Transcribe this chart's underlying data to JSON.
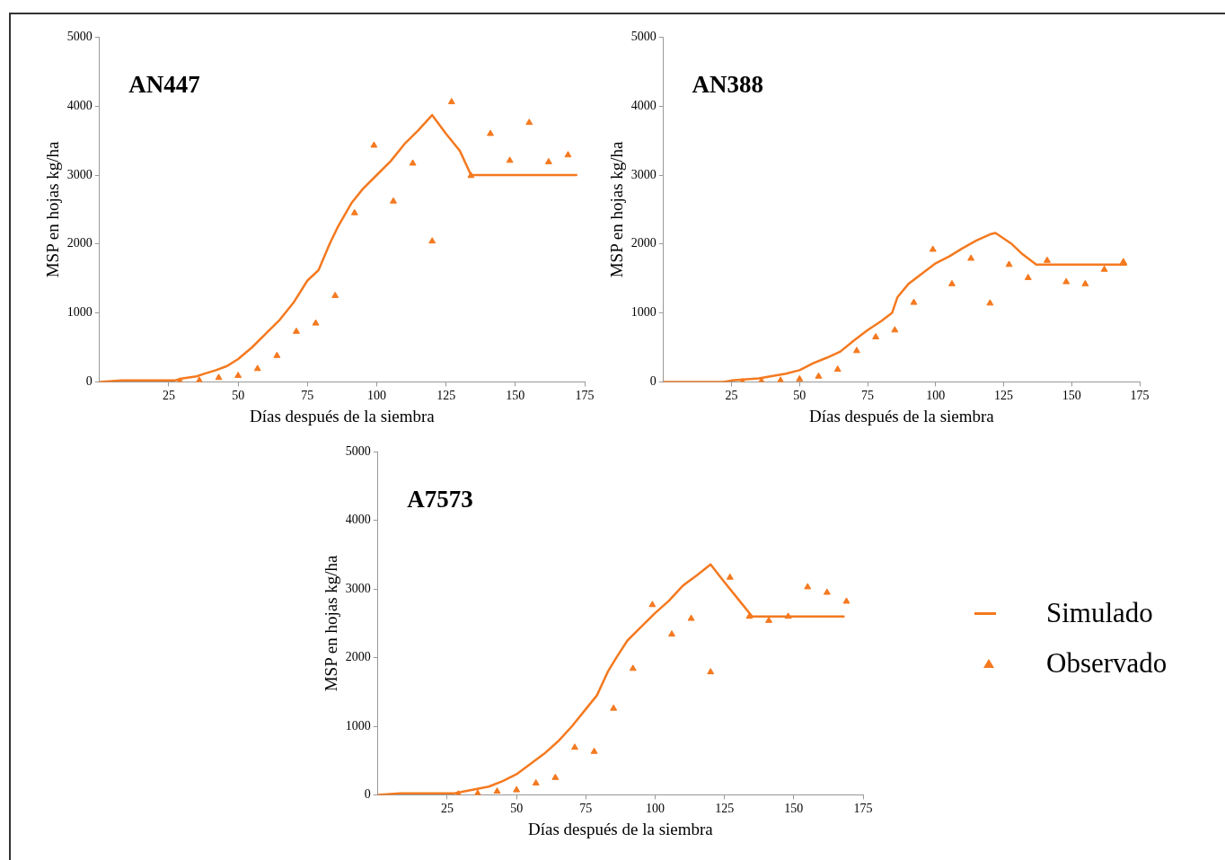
{
  "chart_data": [
    {
      "type": "line",
      "title": "AN447",
      "xlabel": "Días después de la siembra",
      "ylabel": "MSP en hojas kg/ha",
      "xlim": [
        0,
        175
      ],
      "xticks": [
        25,
        50,
        75,
        100,
        125,
        150,
        175
      ],
      "ylim": [
        0,
        5000
      ],
      "yticks": [
        0,
        1000,
        2000,
        3000,
        4000,
        5000
      ],
      "grid": false,
      "legend": false,
      "series": [
        {
          "marker": "none",
          "color": "#f4791f",
          "x": [
            0,
            8,
            27,
            30,
            35,
            38,
            42,
            46,
            50,
            55,
            60,
            65,
            70,
            75,
            79,
            83,
            86,
            91,
            95,
            100,
            105,
            110,
            115,
            120,
            125,
            130,
            134,
            172
          ],
          "values": [
            0,
            20,
            20,
            50,
            80,
            120,
            170,
            230,
            330,
            500,
            700,
            900,
            1150,
            1470,
            1620,
            2000,
            2250,
            2600,
            2800,
            3000,
            3200,
            3450,
            3650,
            3870,
            3600,
            3350,
            3000,
            3000
          ]
        },
        {
          "type": "scatter",
          "marker": "triangle",
          "color": "#f4791f",
          "x": [
            29,
            36,
            43,
            50,
            57,
            64,
            71,
            78,
            85,
            92,
            99,
            106,
            113,
            120,
            127,
            134,
            141,
            148,
            155,
            162,
            169
          ],
          "values": [
            10,
            20,
            60,
            90,
            190,
            380,
            730,
            850,
            1250,
            2450,
            3430,
            2620,
            3170,
            2040,
            4060,
            2990,
            3600,
            3210,
            3760,
            3190,
            3290
          ]
        }
      ]
    },
    {
      "type": "line",
      "title": "AN388",
      "xlabel": "Días después de la siembra",
      "ylabel": "MSP en hojas kg/ha",
      "xlim": [
        0,
        175
      ],
      "xticks": [
        25,
        50,
        75,
        100,
        125,
        150,
        175
      ],
      "ylim": [
        0,
        5000
      ],
      "yticks": [
        0,
        1000,
        2000,
        3000,
        4000,
        5000
      ],
      "grid": false,
      "legend": false,
      "series": [
        {
          "marker": "none",
          "color": "#f4791f",
          "x": [
            0,
            22,
            25,
            35,
            45,
            50,
            55,
            60,
            65,
            70,
            75,
            80,
            84,
            86,
            90,
            95,
            100,
            105,
            110,
            115,
            120,
            122,
            128,
            132,
            137,
            170
          ],
          "values": [
            0,
            0,
            20,
            50,
            120,
            170,
            270,
            350,
            440,
            600,
            750,
            880,
            1000,
            1230,
            1420,
            1570,
            1720,
            1820,
            1940,
            2050,
            2140,
            2160,
            2000,
            1850,
            1700,
            1700
          ]
        },
        {
          "type": "scatter",
          "marker": "triangle",
          "color": "#f4791f",
          "x": [
            29,
            36,
            43,
            50,
            57,
            64,
            71,
            78,
            85,
            92,
            99,
            106,
            113,
            120,
            127,
            134,
            141,
            148,
            155,
            162,
            169
          ],
          "values": [
            0,
            10,
            20,
            40,
            80,
            180,
            450,
            650,
            750,
            1150,
            1920,
            1420,
            1790,
            1140,
            1700,
            1510,
            1760,
            1450,
            1420,
            1630,
            1740
          ]
        }
      ]
    },
    {
      "type": "line",
      "title": "A7573",
      "xlabel": "Días después de la siembra",
      "ylabel": "MSP en hojas kg/ha",
      "xlim": [
        0,
        175
      ],
      "xticks": [
        25,
        50,
        75,
        100,
        125,
        150,
        175
      ],
      "ylim": [
        0,
        5000
      ],
      "yticks": [
        0,
        1000,
        2000,
        3000,
        4000,
        5000
      ],
      "grid": false,
      "legend": "right",
      "series": [
        {
          "name": "Simulado",
          "marker": "none",
          "color": "#f4791f",
          "x": [
            0,
            8,
            27,
            30,
            35,
            40,
            45,
            50,
            55,
            60,
            65,
            70,
            75,
            79,
            83,
            86,
            90,
            95,
            100,
            105,
            110,
            115,
            120,
            125,
            130,
            135,
            168
          ],
          "values": [
            0,
            20,
            20,
            40,
            80,
            120,
            200,
            300,
            450,
            600,
            780,
            1000,
            1250,
            1450,
            1800,
            2000,
            2250,
            2450,
            2650,
            2830,
            3050,
            3200,
            3360,
            3100,
            2850,
            2600,
            2600
          ]
        },
        {
          "type": "scatter",
          "name": "Observado",
          "marker": "triangle",
          "color": "#f4791f",
          "x": [
            29,
            36,
            43,
            50,
            57,
            64,
            71,
            78,
            85,
            92,
            99,
            106,
            113,
            120,
            127,
            134,
            141,
            148,
            155,
            162,
            169
          ],
          "values": [
            10,
            20,
            50,
            70,
            170,
            250,
            690,
            630,
            1260,
            1840,
            2770,
            2340,
            2570,
            1790,
            3170,
            2600,
            2540,
            2600,
            3030,
            2950,
            2820
          ]
        }
      ]
    }
  ]
}
